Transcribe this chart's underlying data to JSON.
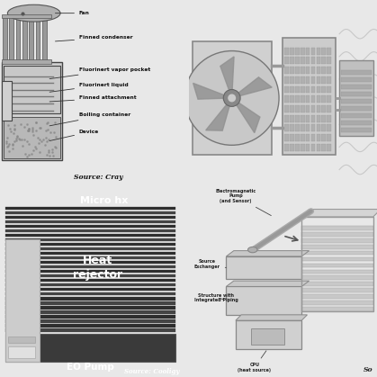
{
  "bg_color": "#e8e8e8",
  "panel_tl_bg": "#e8e8e8",
  "panel_tr_bg": "#e0e0e0",
  "panel_bl_bg": "#1a1a1a",
  "panel_br_bg": "#f0efe8",
  "top_left_labels": [
    "Fan",
    "Finned condenser",
    "Fluorinert vapor pocket",
    "Fluorinert liquid",
    "Finned attachment",
    "Boiling container",
    "Device"
  ],
  "top_left_source": "Source: Cray",
  "bot_left_labels": [
    "Micro hx",
    "Heat\nrejector",
    "EO Pump"
  ],
  "bot_left_source": "Source: Cooligy",
  "bot_right_labels": [
    "Electromagnetic\nPump\n(and Sensor)",
    "Source\nExchanger",
    "Structure with\nIntegrated Piping",
    "CPU\n(heat source)"
  ],
  "bot_right_source": "So"
}
